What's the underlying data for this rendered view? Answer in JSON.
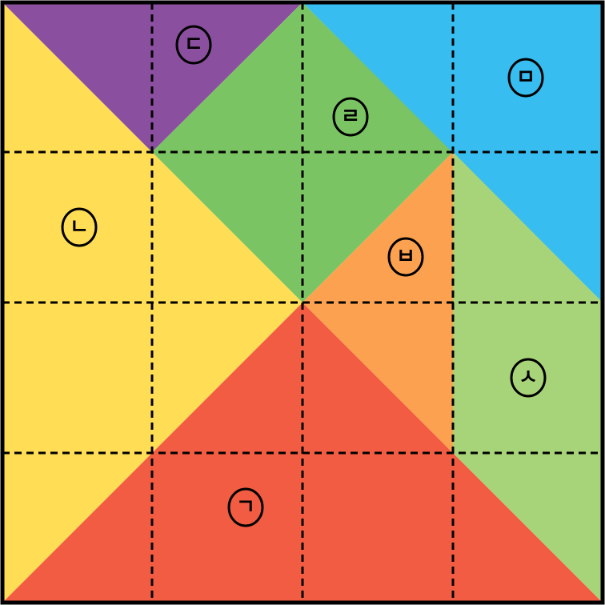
{
  "puzzle": {
    "grid_rows": 4,
    "grid_cols": 4,
    "pieces": [
      {
        "label": "ㄱ",
        "color": "#f25c42"
      },
      {
        "label": "ㄴ",
        "color": "#ffdd55"
      },
      {
        "label": "ㄷ",
        "color": "#8b4fa0"
      },
      {
        "label": "ㄹ",
        "color": "#7bc463"
      },
      {
        "label": "ㅁ",
        "color": "#38bdf0"
      },
      {
        "label": "ㅂ",
        "color": "#fba150"
      },
      {
        "label": "ㅅ",
        "color": "#a8d479"
      }
    ]
  }
}
